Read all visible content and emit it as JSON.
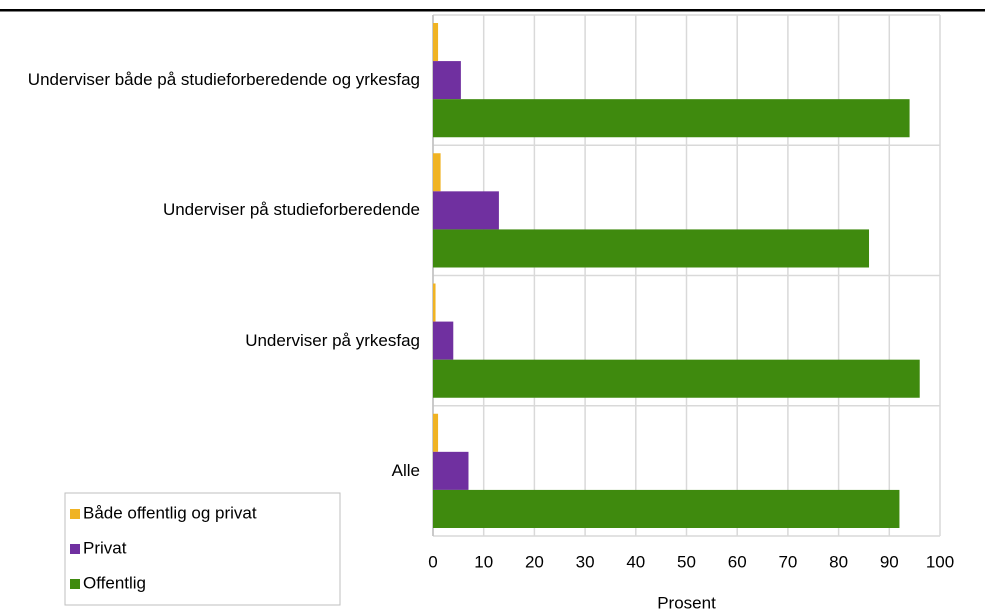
{
  "chart_data": {
    "type": "bar",
    "orientation": "horizontal",
    "categories": [
      "Underviser både på studieforberedende og yrkesfag",
      "Underviser på studieforberedende",
      "Underviser på yrkesfag",
      "Alle"
    ],
    "series": [
      {
        "name": "Både offentlig og privat",
        "color": "#f0b323",
        "values": [
          1,
          1.5,
          0.5,
          1
        ]
      },
      {
        "name": "Privat",
        "color": "#7030a0",
        "values": [
          5.5,
          13,
          4,
          7
        ]
      },
      {
        "name": "Offentlig",
        "color": "#3f8a0e",
        "values": [
          94,
          86,
          96,
          92
        ]
      }
    ],
    "xlim": [
      0,
      100
    ],
    "xticks": [
      0,
      10,
      20,
      30,
      40,
      50,
      60,
      70,
      80,
      90,
      100
    ],
    "xlabel": "Prosent",
    "grid": true,
    "legend": "lower left"
  }
}
